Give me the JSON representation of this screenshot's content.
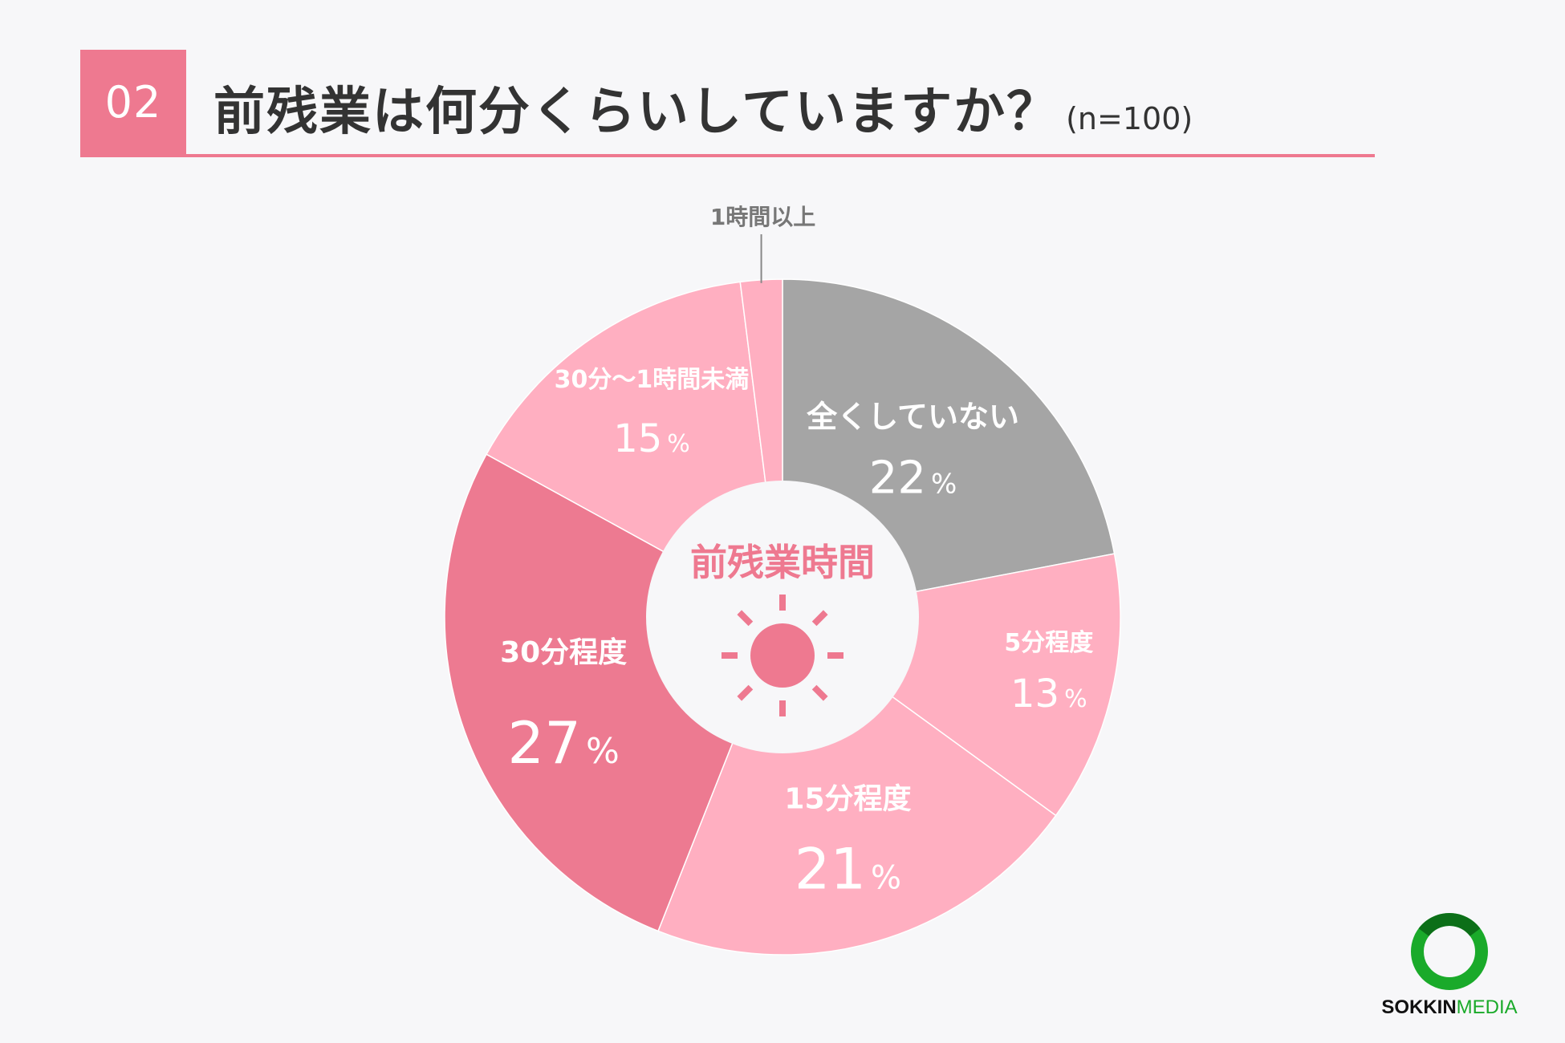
{
  "header": {
    "number": "02",
    "title": "前残業は何分くらいしていますか？",
    "sample": "(n=100)"
  },
  "chart_data": {
    "type": "pie",
    "center_label": "前残業時間",
    "unit": "%",
    "slices": [
      {
        "label": "全くしていない",
        "value": 22,
        "display": "22",
        "color": "#a5a5a5"
      },
      {
        "label": "5分程度",
        "value": 13,
        "display": "13",
        "color": "#ffafc1"
      },
      {
        "label": "15分程度",
        "value": 21,
        "display": "21",
        "color": "#ffafc1"
      },
      {
        "label": "30分程度",
        "value": 27,
        "display": "27",
        "color": "#ed7a91"
      },
      {
        "label": "30分〜1時間未満",
        "value": 15,
        "display": "15",
        "color": "#ffafc1"
      },
      {
        "label": "1時間以上",
        "value": 2,
        "display": "",
        "color": "#ffafc1"
      }
    ]
  },
  "center_icon": "sun-icon",
  "logo": {
    "brand_bold": "SOKKIN",
    "brand_light": "MEDIA",
    "icon": "ring-logo-icon"
  },
  "colors": {
    "accent": "#ee7990",
    "light_pink": "#ffafc1",
    "gray": "#a5a5a5",
    "logo_green": "#1aaa2a"
  }
}
